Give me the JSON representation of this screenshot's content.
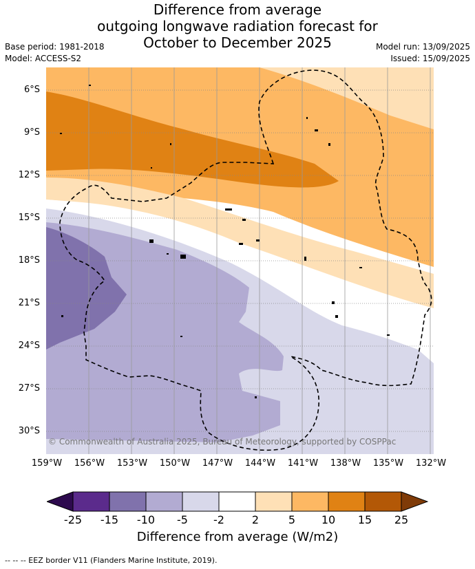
{
  "title": {
    "line1": "Difference from average",
    "line2": "outgoing longwave radiation forecast for",
    "line3": "October to December 2025"
  },
  "meta": {
    "base_period": "Base period: 1981-2018",
    "model": "Model: ACCESS-S2",
    "model_run": "Model run: 13/09/2025",
    "issued": "Issued: 15/09/2025"
  },
  "map": {
    "lat_labels": [
      "6°S",
      "9°S",
      "12°S",
      "15°S",
      "18°S",
      "21°S",
      "24°S",
      "27°S",
      "30°S"
    ],
    "lon_labels": [
      "159°W",
      "156°W",
      "153°W",
      "150°W",
      "147°W",
      "144°W",
      "141°W",
      "138°W",
      "135°W",
      "132°W"
    ],
    "copyright": "© Commonwealth of Australia 2025, Bureau of Meteorology, supported by COSPPac"
  },
  "colorbar": {
    "ticks": [
      "-25",
      "-15",
      "-10",
      "-5",
      "-2",
      "2",
      "5",
      "10",
      "15",
      "25"
    ],
    "title": "Difference from average (W/m2)",
    "colors": [
      "#2d0a4e",
      "#5b2b8c",
      "#8072ac",
      "#b2abd2",
      "#d8d8ea",
      "#ffffff",
      "#fee0b6",
      "#fdb863",
      "#e08214",
      "#b35806",
      "#7f3b08"
    ]
  },
  "footer": "--  --  -- EEZ border V11 (Flanders Marine Institute, 2019)."
}
